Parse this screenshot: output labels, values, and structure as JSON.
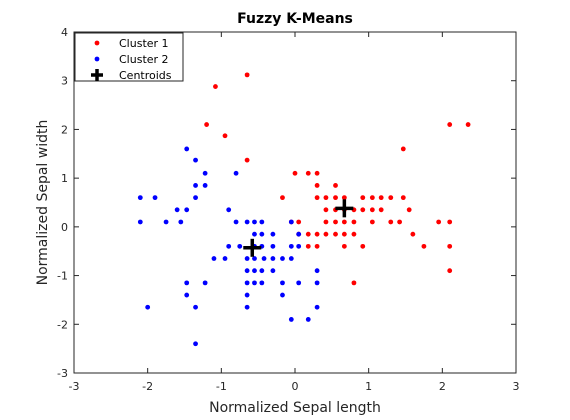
{
  "chart_data": {
    "type": "scatter",
    "title": "Fuzzy K-Means",
    "xlabel": "Normalized Sepal length",
    "ylabel": "Normalized Sepal width",
    "xlim": [
      -3,
      3
    ],
    "ylim": [
      -3,
      4
    ],
    "xticks": [
      "-3",
      "-2",
      "-1",
      "0",
      "1",
      "2",
      "3"
    ],
    "yticks": [
      "-3",
      "-2",
      "-1",
      "0",
      "1",
      "2",
      "3",
      "4"
    ],
    "grid": false,
    "legend_position": "top-left",
    "series": [
      {
        "name": "Cluster 1",
        "color": "#ff0000",
        "marker": "dot",
        "points": [
          [
            -0.65,
            3.12
          ],
          [
            -1.08,
            2.88
          ],
          [
            -1.2,
            2.1
          ],
          [
            -0.95,
            1.87
          ],
          [
            -0.65,
            1.37
          ],
          [
            -0.17,
            0.6
          ],
          [
            0.0,
            1.1
          ],
          [
            0.18,
            1.1
          ],
          [
            0.3,
            1.1
          ],
          [
            0.3,
            0.85
          ],
          [
            0.3,
            0.6
          ],
          [
            0.42,
            0.6
          ],
          [
            0.55,
            0.85
          ],
          [
            0.55,
            0.6
          ],
          [
            0.55,
            0.35
          ],
          [
            0.42,
            0.35
          ],
          [
            0.42,
            0.1
          ],
          [
            0.42,
            -0.15
          ],
          [
            0.55,
            0.1
          ],
          [
            0.55,
            -0.15
          ],
          [
            0.67,
            0.35
          ],
          [
            0.67,
            0.1
          ],
          [
            0.67,
            -0.15
          ],
          [
            0.67,
            -0.4
          ],
          [
            0.8,
            0.35
          ],
          [
            0.8,
            0.1
          ],
          [
            0.8,
            -0.15
          ],
          [
            0.92,
            0.6
          ],
          [
            0.92,
            0.35
          ],
          [
            0.92,
            -0.4
          ],
          [
            1.05,
            0.6
          ],
          [
            1.05,
            0.35
          ],
          [
            1.05,
            0.1
          ],
          [
            1.17,
            0.6
          ],
          [
            1.17,
            0.35
          ],
          [
            1.3,
            0.6
          ],
          [
            1.3,
            0.1
          ],
          [
            1.42,
            0.1
          ],
          [
            1.47,
            1.6
          ],
          [
            1.47,
            0.6
          ],
          [
            1.55,
            0.35
          ],
          [
            1.6,
            -0.15
          ],
          [
            1.75,
            -0.4
          ],
          [
            1.95,
            0.1
          ],
          [
            2.1,
            0.1
          ],
          [
            2.1,
            -0.4
          ],
          [
            2.1,
            -0.9
          ],
          [
            2.1,
            2.1
          ],
          [
            2.35,
            2.1
          ],
          [
            0.18,
            -0.15
          ],
          [
            0.3,
            -0.15
          ],
          [
            0.3,
            -0.4
          ],
          [
            0.18,
            -0.4
          ],
          [
            0.05,
            0.1
          ],
          [
            0.05,
            -0.15
          ],
          [
            0.8,
            -1.15
          ],
          [
            -0.05,
            0.1
          ],
          [
            0.67,
            0.6
          ]
        ]
      },
      {
        "name": "Cluster 2",
        "color": "#0000ff",
        "marker": "dot",
        "points": [
          [
            -2.1,
            0.6
          ],
          [
            -2.1,
            0.1
          ],
          [
            -1.9,
            0.6
          ],
          [
            -1.6,
            0.35
          ],
          [
            -1.55,
            0.1
          ],
          [
            -1.47,
            1.6
          ],
          [
            -1.47,
            0.35
          ],
          [
            -1.35,
            1.37
          ],
          [
            -1.35,
            0.85
          ],
          [
            -1.35,
            0.6
          ],
          [
            -1.22,
            1.1
          ],
          [
            -1.22,
            0.85
          ],
          [
            -1.47,
            -1.15
          ],
          [
            -1.47,
            -1.4
          ],
          [
            -1.35,
            -1.65
          ],
          [
            -1.35,
            -2.4
          ],
          [
            -1.22,
            -1.15
          ],
          [
            -1.1,
            -0.65
          ],
          [
            -0.95,
            -0.65
          ],
          [
            -0.9,
            0.35
          ],
          [
            -0.8,
            0.1
          ],
          [
            -0.8,
            1.1
          ],
          [
            -0.65,
            0.1
          ],
          [
            -0.55,
            0.1
          ],
          [
            -0.45,
            0.1
          ],
          [
            -0.55,
            -0.15
          ],
          [
            -0.45,
            -0.15
          ],
          [
            -0.55,
            -0.4
          ],
          [
            -0.45,
            -0.4
          ],
          [
            -0.42,
            -0.65
          ],
          [
            -0.55,
            -0.65
          ],
          [
            -0.65,
            -0.9
          ],
          [
            -0.55,
            -0.9
          ],
          [
            -0.45,
            -0.9
          ],
          [
            -0.65,
            -1.15
          ],
          [
            -0.55,
            -1.15
          ],
          [
            -0.45,
            -1.15
          ],
          [
            -0.65,
            -1.4
          ],
          [
            -0.65,
            -1.65
          ],
          [
            -0.3,
            -0.9
          ],
          [
            -0.3,
            -0.65
          ],
          [
            -0.3,
            -0.4
          ],
          [
            -0.3,
            -0.15
          ],
          [
            -0.17,
            -0.65
          ],
          [
            -0.17,
            -1.15
          ],
          [
            -0.05,
            0.1
          ],
          [
            -0.05,
            -0.4
          ],
          [
            -0.05,
            -0.65
          ],
          [
            0.05,
            -0.15
          ],
          [
            0.05,
            -0.4
          ],
          [
            0.05,
            -1.15
          ],
          [
            -0.05,
            -1.9
          ],
          [
            0.18,
            -1.9
          ],
          [
            0.3,
            -1.65
          ],
          [
            0.3,
            -1.15
          ],
          [
            0.3,
            -0.9
          ],
          [
            -1.75,
            0.1
          ],
          [
            -2.0,
            -1.65
          ],
          [
            -0.65,
            -0.65
          ],
          [
            -0.75,
            -0.4
          ],
          [
            -0.17,
            -1.4
          ],
          [
            -0.9,
            -0.4
          ]
        ]
      }
    ],
    "centroids": {
      "name": "Centroids",
      "color": "#000000",
      "marker": "plus",
      "points": [
        [
          0.67,
          0.38
        ],
        [
          -0.58,
          -0.43
        ]
      ]
    }
  }
}
